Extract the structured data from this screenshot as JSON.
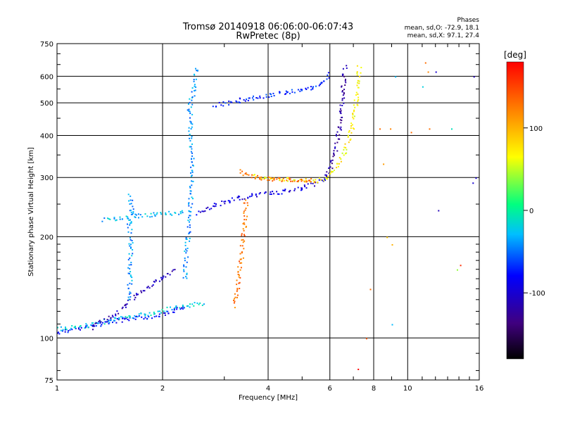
{
  "chart_data": {
    "type": "scatter",
    "title": "Tromsø 20140918 06:06:00-06:07:43",
    "subtitle": "RwPretec (8p)",
    "xlabel": "Frequency [MHz]",
    "ylabel": "Stationary phase Virtual Height [km]",
    "x_scale": "log",
    "y_scale": "log",
    "xlim": [
      1,
      16
    ],
    "ylim": [
      75,
      750
    ],
    "grid": true,
    "x_ticks": [
      1,
      2,
      4,
      6,
      8,
      10,
      16
    ],
    "y_ticks": [
      75,
      100,
      200,
      300,
      400,
      500,
      600,
      750
    ],
    "stats": {
      "heading": "Phases",
      "o_line": "mean, sd,O: -72.9, 18.1",
      "x_line": "mean, sd,X:  97.1, 27.4"
    },
    "colorbar": {
      "unit_label": "[deg]",
      "range": [
        -180,
        180
      ],
      "ticks": [
        100,
        0,
        -100
      ],
      "colors": [
        "#000000",
        "#40007f",
        "#0000ff",
        "#00bfff",
        "#00ff80",
        "#ffff00",
        "#ff8000",
        "#ff0000"
      ]
    },
    "traces": [
      {
        "name_hint": "low O",
        "x": [
          1.0,
          1.2,
          1.4,
          1.6,
          1.8,
          2.0,
          2.2,
          2.35
        ],
        "y": [
          104,
          108,
          112,
          114,
          116,
          118,
          122,
          124
        ],
        "phase": -80
      },
      {
        "name_hint": "low X",
        "x": [
          1.0,
          1.2,
          1.4,
          1.6,
          1.8,
          2.0,
          2.2,
          2.4,
          2.6
        ],
        "y": [
          107,
          109,
          113,
          116,
          118,
          121,
          124,
          126,
          127
        ],
        "phase": -20
      },
      {
        "name_hint": "E oblique O",
        "x": [
          1.25,
          1.4,
          1.55,
          1.7,
          1.85,
          2.0,
          2.15
        ],
        "y": [
          108,
          115,
          125,
          135,
          145,
          152,
          160
        ],
        "phase": -110
      },
      {
        "name_hint": "Es 1.6 band",
        "x": [
          1.6,
          1.61,
          1.62,
          1.6,
          1.63,
          1.62,
          1.61
        ],
        "y": [
          130,
          160,
          190,
          220,
          240,
          255,
          265
        ],
        "phase": -40
      },
      {
        "name_hint": "Es plateau",
        "x": [
          1.35,
          1.5,
          1.7,
          1.9,
          2.1,
          2.3
        ],
        "y": [
          226,
          228,
          232,
          234,
          236,
          238
        ],
        "phase": -30
      },
      {
        "name_hint": "F1 cusp 2.4",
        "x": [
          2.3,
          2.35,
          2.4,
          2.42,
          2.4,
          2.38,
          2.45,
          2.5
        ],
        "y": [
          150,
          200,
          260,
          320,
          400,
          480,
          560,
          640
        ],
        "phase": -40
      },
      {
        "name_hint": "F O lower",
        "x": [
          2.5,
          2.8,
          3.0,
          3.3,
          3.6,
          4.0,
          4.5,
          5.0,
          5.4,
          5.8
        ],
        "y": [
          235,
          248,
          255,
          262,
          266,
          270,
          274,
          280,
          288,
          300
        ],
        "phase": -95
      },
      {
        "name_hint": "F O cusp",
        "x": [
          5.8,
          6.0,
          6.2,
          6.35,
          6.45,
          6.5,
          6.55,
          6.6
        ],
        "y": [
          300,
          320,
          360,
          420,
          480,
          540,
          590,
          640
        ],
        "phase": -120
      },
      {
        "name_hint": "F O upper",
        "x": [
          2.8,
          3.0,
          3.3,
          3.6,
          4.0,
          4.5,
          5.0,
          5.4,
          5.7,
          6.0
        ],
        "y": [
          495,
          500,
          510,
          520,
          530,
          540,
          548,
          560,
          580,
          610
        ],
        "phase": -70
      },
      {
        "name_hint": "F X",
        "x": [
          3.6,
          4.0,
          4.5,
          5.0,
          5.5,
          5.8,
          6.2,
          6.6,
          6.9,
          7.1,
          7.2,
          7.25
        ],
        "y": [
          305,
          300,
          298,
          296,
          293,
          300,
          320,
          360,
          420,
          500,
          580,
          640
        ],
        "phase": 70
      },
      {
        "name_hint": "F X low",
        "x": [
          3.3,
          3.5,
          3.8,
          4.2,
          4.6,
          5.0,
          5.4
        ],
        "y": [
          315,
          305,
          300,
          298,
          297,
          296,
          295
        ],
        "phase": 130
      },
      {
        "name_hint": "X vertical",
        "x": [
          3.2,
          3.25,
          3.3,
          3.35,
          3.4,
          3.45
        ],
        "y": [
          125,
          140,
          160,
          180,
          210,
          260
        ],
        "phase": 130
      }
    ],
    "scatter": [
      {
        "x": 8.3,
        "y": 420,
        "phase": 130
      },
      {
        "x": 8.5,
        "y": 330,
        "phase": 110
      },
      {
        "x": 8.7,
        "y": 200,
        "phase": 90
      },
      {
        "x": 8.9,
        "y": 420,
        "phase": 120
      },
      {
        "x": 9.2,
        "y": 600,
        "phase": -30
      },
      {
        "x": 9.0,
        "y": 190,
        "phase": 100
      },
      {
        "x": 10.2,
        "y": 410,
        "phase": 130
      },
      {
        "x": 11.2,
        "y": 660,
        "phase": 130
      },
      {
        "x": 11.4,
        "y": 620,
        "phase": 120
      },
      {
        "x": 11.0,
        "y": 560,
        "phase": -20
      },
      {
        "x": 11.5,
        "y": 420,
        "phase": 130
      },
      {
        "x": 12.0,
        "y": 620,
        "phase": -100
      },
      {
        "x": 13.3,
        "y": 420,
        "phase": -10
      },
      {
        "x": 13.8,
        "y": 160,
        "phase": 40
      },
      {
        "x": 14.1,
        "y": 165,
        "phase": 160
      },
      {
        "x": 15.3,
        "y": 290,
        "phase": -100
      },
      {
        "x": 15.4,
        "y": 600,
        "phase": -110
      },
      {
        "x": 15.6,
        "y": 300,
        "phase": -100
      },
      {
        "x": 12.2,
        "y": 240,
        "phase": -110
      },
      {
        "x": 7.8,
        "y": 140,
        "phase": 130
      },
      {
        "x": 7.6,
        "y": 100,
        "phase": 140
      },
      {
        "x": 7.2,
        "y": 81,
        "phase": 180
      },
      {
        "x": 9.0,
        "y": 110,
        "phase": -30
      }
    ]
  }
}
